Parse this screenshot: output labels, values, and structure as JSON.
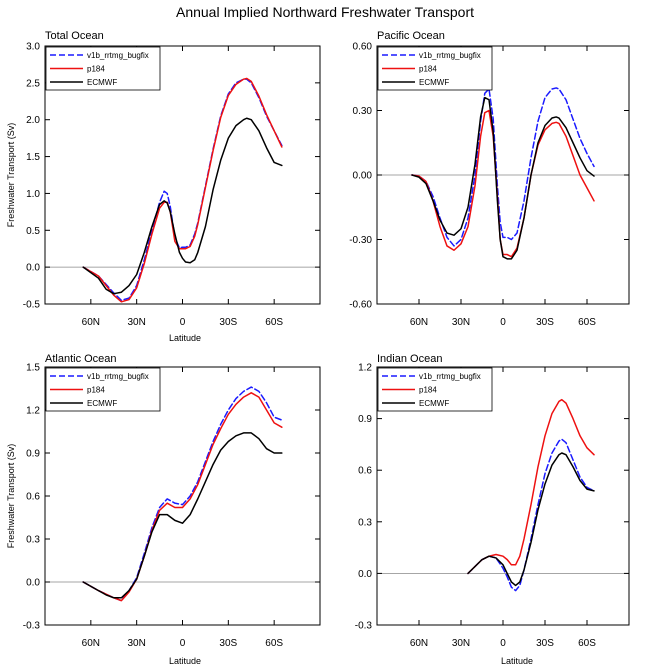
{
  "figure_title": "Annual Implied Northward Freshwater Transport",
  "colors": {
    "v1b_rrtmg_bugfix": "#1a1aff",
    "p184": "#ee1111",
    "ECMWF": "#000000"
  },
  "chart_data": [
    {
      "type": "line",
      "title": "Total Ocean",
      "xlabel": "Latitude",
      "ylabel": "Freshwater Transport (Sv)",
      "xlim": [
        -90,
        90
      ],
      "ylim": [
        -0.5,
        3.0
      ],
      "yticks": [
        -0.5,
        0.0,
        0.5,
        1.0,
        1.5,
        2.0,
        2.5,
        3.0
      ],
      "ytick_labels": [
        "-0.5",
        "0.0",
        "0.5",
        "1.0",
        "1.5",
        "2.0",
        "2.5",
        "3.0"
      ],
      "xticks": [
        -60,
        -30,
        0,
        30,
        60
      ],
      "xtick_labels": [
        "60N",
        "30N",
        "0",
        "30S",
        "60S"
      ],
      "legend": [
        "v1b_rrtmg_bugfix",
        "p184",
        "ECMWF"
      ],
      "series": [
        {
          "name": "v1b_rrtmg_bugfix",
          "style": "dashed",
          "x": [
            -65,
            -55,
            -45,
            -40,
            -35,
            -30,
            -25,
            -20,
            -15,
            -12,
            -10,
            -8,
            -5,
            -2,
            0,
            2,
            5,
            8,
            10,
            15,
            20,
            25,
            30,
            35,
            40,
            42,
            45,
            50,
            55,
            60,
            65
          ],
          "y": [
            0.0,
            -0.12,
            -0.35,
            -0.45,
            -0.42,
            -0.25,
            0.1,
            0.5,
            0.88,
            1.03,
            1.0,
            0.82,
            0.4,
            0.26,
            0.27,
            0.27,
            0.3,
            0.45,
            0.6,
            1.1,
            1.6,
            2.05,
            2.35,
            2.5,
            2.55,
            2.55,
            2.5,
            2.3,
            2.05,
            1.85,
            1.65
          ]
        },
        {
          "name": "p184",
          "style": "solid",
          "x": [
            -65,
            -55,
            -45,
            -40,
            -35,
            -30,
            -25,
            -20,
            -15,
            -12,
            -10,
            -8,
            -5,
            -2,
            0,
            2,
            5,
            8,
            10,
            15,
            20,
            25,
            30,
            35,
            40,
            42,
            45,
            50,
            55,
            60,
            65
          ],
          "y": [
            0.0,
            -0.12,
            -0.38,
            -0.47,
            -0.44,
            -0.28,
            0.05,
            0.45,
            0.8,
            0.88,
            0.88,
            0.75,
            0.35,
            0.25,
            0.25,
            0.25,
            0.28,
            0.42,
            0.58,
            1.08,
            1.58,
            2.03,
            2.33,
            2.48,
            2.55,
            2.56,
            2.52,
            2.32,
            2.07,
            1.85,
            1.63
          ]
        },
        {
          "name": "ECMWF",
          "style": "solid",
          "x": [
            -65,
            -55,
            -50,
            -45,
            -40,
            -35,
            -30,
            -25,
            -20,
            -15,
            -12,
            -10,
            -8,
            -5,
            -2,
            0,
            2,
            5,
            8,
            10,
            15,
            20,
            25,
            30,
            35,
            40,
            42,
            45,
            50,
            55,
            60,
            65
          ],
          "y": [
            0.0,
            -0.15,
            -0.3,
            -0.36,
            -0.34,
            -0.25,
            -0.1,
            0.2,
            0.55,
            0.85,
            0.9,
            0.87,
            0.75,
            0.45,
            0.2,
            0.12,
            0.07,
            0.06,
            0.1,
            0.2,
            0.55,
            1.05,
            1.45,
            1.75,
            1.92,
            2.0,
            2.02,
            2.0,
            1.85,
            1.62,
            1.42,
            1.38
          ]
        }
      ]
    },
    {
      "type": "line",
      "title": "Pacific Ocean",
      "xlabel": "",
      "ylabel": "",
      "xlim": [
        -90,
        90
      ],
      "ylim": [
        -0.6,
        0.6
      ],
      "yticks": [
        -0.6,
        -0.3,
        0.0,
        0.3,
        0.6
      ],
      "ytick_labels": [
        "-0.60",
        "-0.30",
        "0.00",
        "0.30",
        "0.60"
      ],
      "xticks": [
        -60,
        -30,
        0,
        30,
        60
      ],
      "xtick_labels": [
        "60N",
        "30N",
        "0",
        "30S",
        "60S"
      ],
      "legend": [
        "v1b_rrtmg_bugfix",
        "p184",
        "ECMWF"
      ],
      "series": [
        {
          "name": "v1b_rrtmg_bugfix",
          "style": "dashed",
          "x": [
            -65,
            -60,
            -55,
            -50,
            -45,
            -40,
            -35,
            -30,
            -25,
            -20,
            -16,
            -13,
            -10,
            -7,
            -4,
            -2,
            0,
            3,
            6,
            10,
            15,
            20,
            25,
            30,
            35,
            38,
            40,
            45,
            50,
            55,
            60,
            65
          ],
          "y": [
            0.0,
            -0.005,
            -0.03,
            -0.1,
            -0.2,
            -0.29,
            -0.33,
            -0.3,
            -0.2,
            0.0,
            0.25,
            0.38,
            0.4,
            0.26,
            -0.05,
            -0.22,
            -0.29,
            -0.29,
            -0.3,
            -0.27,
            -0.12,
            0.08,
            0.25,
            0.36,
            0.4,
            0.405,
            0.4,
            0.35,
            0.26,
            0.17,
            0.1,
            0.04
          ]
        },
        {
          "name": "p184",
          "style": "solid",
          "x": [
            -65,
            -60,
            -55,
            -50,
            -45,
            -40,
            -35,
            -30,
            -25,
            -20,
            -16,
            -13,
            -10,
            -7,
            -4,
            -2,
            0,
            3,
            6,
            10,
            15,
            20,
            25,
            30,
            35,
            38,
            40,
            45,
            50,
            55,
            60,
            65
          ],
          "y": [
            0.0,
            -0.005,
            -0.03,
            -0.12,
            -0.24,
            -0.33,
            -0.35,
            -0.32,
            -0.24,
            -0.05,
            0.18,
            0.29,
            0.3,
            0.18,
            -0.1,
            -0.3,
            -0.37,
            -0.37,
            -0.38,
            -0.34,
            -0.2,
            0.0,
            0.14,
            0.21,
            0.24,
            0.245,
            0.24,
            0.18,
            0.09,
            0.0,
            -0.06,
            -0.12
          ]
        },
        {
          "name": "ECMWF",
          "style": "solid",
          "x": [
            -65,
            -60,
            -55,
            -50,
            -45,
            -40,
            -35,
            -30,
            -25,
            -20,
            -16,
            -13,
            -10,
            -7,
            -4,
            -2,
            0,
            3,
            6,
            10,
            15,
            20,
            25,
            30,
            35,
            38,
            40,
            45,
            50,
            55,
            60,
            65
          ],
          "y": [
            0.0,
            -0.01,
            -0.04,
            -0.12,
            -0.21,
            -0.27,
            -0.28,
            -0.25,
            -0.15,
            0.05,
            0.27,
            0.36,
            0.35,
            0.2,
            -0.12,
            -0.3,
            -0.38,
            -0.39,
            -0.39,
            -0.35,
            -0.2,
            0.0,
            0.15,
            0.23,
            0.265,
            0.27,
            0.265,
            0.22,
            0.15,
            0.08,
            0.02,
            -0.005
          ]
        }
      ]
    },
    {
      "type": "line",
      "title": "Atlantic Ocean",
      "xlabel": "Latitude",
      "ylabel": "Freshwater Transport (Sv)",
      "xlim": [
        -90,
        90
      ],
      "ylim": [
        -0.3,
        1.5
      ],
      "yticks": [
        -0.3,
        0.0,
        0.3,
        0.6,
        0.9,
        1.2,
        1.5
      ],
      "ytick_labels": [
        "-0.3",
        "0.0",
        "0.3",
        "0.6",
        "0.9",
        "1.2",
        "1.5"
      ],
      "xticks": [
        -60,
        -30,
        0,
        30,
        60
      ],
      "xtick_labels": [
        "60N",
        "30N",
        "0",
        "30S",
        "60S"
      ],
      "legend": [
        "v1b_rrtmg_bugfix",
        "p184",
        "ECMWF"
      ],
      "series": [
        {
          "name": "v1b_rrtmg_bugfix",
          "style": "dashed",
          "x": [
            -65,
            -55,
            -45,
            -40,
            -35,
            -30,
            -25,
            -20,
            -15,
            -10,
            -5,
            0,
            5,
            10,
            15,
            20,
            25,
            30,
            35,
            40,
            45,
            50,
            55,
            60,
            65
          ],
          "y": [
            0.0,
            -0.06,
            -0.11,
            -0.13,
            -0.06,
            0.03,
            0.2,
            0.38,
            0.52,
            0.58,
            0.55,
            0.54,
            0.6,
            0.7,
            0.84,
            0.98,
            1.1,
            1.2,
            1.28,
            1.33,
            1.36,
            1.33,
            1.25,
            1.15,
            1.13
          ]
        },
        {
          "name": "p184",
          "style": "solid",
          "x": [
            -65,
            -55,
            -45,
            -40,
            -35,
            -30,
            -25,
            -20,
            -15,
            -10,
            -5,
            0,
            5,
            10,
            15,
            20,
            25,
            30,
            35,
            40,
            45,
            50,
            55,
            60,
            65
          ],
          "y": [
            0.0,
            -0.06,
            -0.11,
            -0.13,
            -0.07,
            0.02,
            0.18,
            0.36,
            0.5,
            0.55,
            0.52,
            0.52,
            0.58,
            0.68,
            0.82,
            0.96,
            1.07,
            1.17,
            1.24,
            1.29,
            1.32,
            1.29,
            1.2,
            1.11,
            1.08
          ]
        },
        {
          "name": "ECMWF",
          "style": "solid",
          "x": [
            -65,
            -55,
            -50,
            -45,
            -40,
            -35,
            -30,
            -25,
            -20,
            -15,
            -10,
            -5,
            0,
            5,
            10,
            15,
            20,
            25,
            30,
            35,
            40,
            45,
            50,
            55,
            60,
            65
          ],
          "y": [
            0.0,
            -0.06,
            -0.09,
            -0.11,
            -0.11,
            -0.06,
            0.02,
            0.18,
            0.35,
            0.47,
            0.47,
            0.43,
            0.41,
            0.47,
            0.58,
            0.7,
            0.82,
            0.92,
            0.98,
            1.02,
            1.04,
            1.04,
            1.0,
            0.93,
            0.9,
            0.9
          ]
        }
      ]
    },
    {
      "type": "line",
      "title": "Indian Ocean",
      "xlabel": "Latitude",
      "ylabel": "",
      "xlim": [
        -90,
        90
      ],
      "ylim": [
        -0.3,
        1.2
      ],
      "yticks": [
        -0.3,
        0.0,
        0.3,
        0.6,
        0.9,
        1.2
      ],
      "ytick_labels": [
        "-0.3",
        "0.0",
        "0.3",
        "0.6",
        "0.9",
        "1.2"
      ],
      "xticks": [
        -60,
        -30,
        0,
        30,
        60
      ],
      "xtick_labels": [
        "60N",
        "30N",
        "0",
        "30S",
        "60S"
      ],
      "legend": [
        "v1b_rrtmg_bugfix",
        "p184",
        "ECMWF"
      ],
      "series": [
        {
          "name": "v1b_rrtmg_bugfix",
          "style": "dashed",
          "x": [
            -25,
            -20,
            -15,
            -10,
            -5,
            0,
            3,
            6,
            9,
            12,
            15,
            20,
            25,
            30,
            35,
            40,
            42,
            45,
            50,
            55,
            60,
            65
          ],
          "y": [
            0.0,
            0.04,
            0.08,
            0.1,
            0.09,
            0.03,
            -0.02,
            -0.08,
            -0.1,
            -0.07,
            0.02,
            0.2,
            0.4,
            0.58,
            0.7,
            0.77,
            0.78,
            0.76,
            0.66,
            0.56,
            0.5,
            0.48
          ]
        },
        {
          "name": "p184",
          "style": "solid",
          "x": [
            -25,
            -20,
            -15,
            -10,
            -5,
            0,
            3,
            6,
            9,
            12,
            15,
            20,
            25,
            30,
            35,
            40,
            42,
            45,
            50,
            55,
            60,
            65
          ],
          "y": [
            0.0,
            0.04,
            0.08,
            0.1,
            0.11,
            0.1,
            0.08,
            0.05,
            0.05,
            0.1,
            0.2,
            0.4,
            0.62,
            0.8,
            0.93,
            1.0,
            1.01,
            0.99,
            0.9,
            0.8,
            0.73,
            0.69
          ]
        },
        {
          "name": "ECMWF",
          "style": "solid",
          "x": [
            -25,
            -20,
            -15,
            -10,
            -5,
            0,
            3,
            6,
            9,
            12,
            15,
            20,
            25,
            30,
            35,
            40,
            42,
            45,
            50,
            55,
            60,
            65
          ],
          "y": [
            0.0,
            0.04,
            0.08,
            0.1,
            0.09,
            0.05,
            0.0,
            -0.05,
            -0.07,
            -0.05,
            0.02,
            0.18,
            0.37,
            0.52,
            0.63,
            0.69,
            0.7,
            0.69,
            0.62,
            0.54,
            0.49,
            0.48
          ]
        }
      ]
    }
  ]
}
